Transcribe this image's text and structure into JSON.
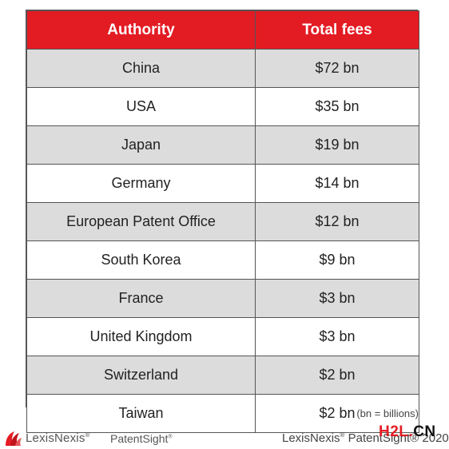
{
  "table": {
    "headers": {
      "authority": "Authority",
      "fees": "Total fees"
    },
    "rows": [
      {
        "authority": "China",
        "fees": "$72 bn"
      },
      {
        "authority": "USA",
        "fees": "$35 bn"
      },
      {
        "authority": "Japan",
        "fees": "$19 bn"
      },
      {
        "authority": "Germany",
        "fees": "$14 bn"
      },
      {
        "authority": "European Patent Office",
        "fees": "$12 bn"
      },
      {
        "authority": "South Korea",
        "fees": "$9 bn"
      },
      {
        "authority": "France",
        "fees": "$3 bn"
      },
      {
        "authority": "United Kingdom",
        "fees": "$3 bn"
      },
      {
        "authority": "Switzerland",
        "fees": "$2 bn"
      },
      {
        "authority": "Taiwan",
        "fees": "$2 bn"
      }
    ]
  },
  "footnote": "(bn = billions)",
  "footer": {
    "logo_name": "LexisNexis",
    "logo_reg": "®",
    "patentsight": "PatentSight",
    "patentsight_reg": "®",
    "copyright_brand": "LexisNexis",
    "copyright_reg": "®",
    "copyright_rest": " PatentSight® 2020",
    "watermark_main": "H2L",
    "watermark_dot": ".",
    "watermark_cn": "CN"
  },
  "colors": {
    "header_red": "#e31b23",
    "stripe_gray": "#dcdcdc"
  },
  "icons": {
    "logo": "lexisnexis-logo-icon"
  }
}
